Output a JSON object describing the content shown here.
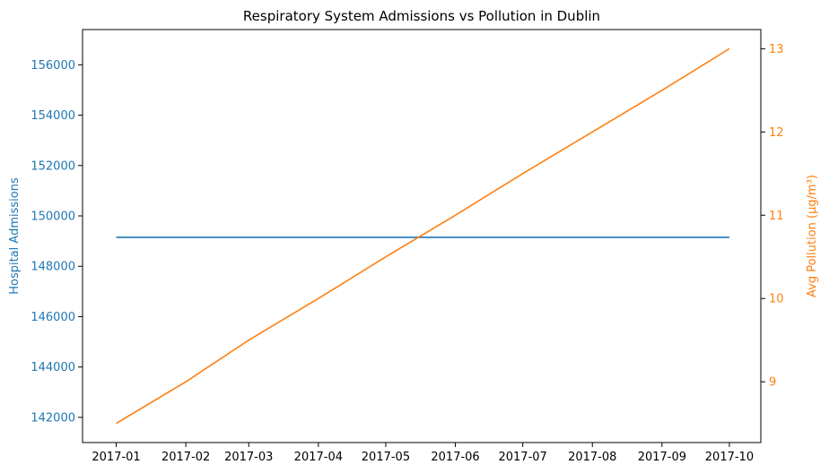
{
  "chart_data": {
    "type": "line",
    "title": "Respiratory System Admissions vs Pollution in Dublin",
    "x": [
      "2017-01",
      "2017-02",
      "2017-03",
      "2017-04",
      "2017-05",
      "2017-06",
      "2017-07",
      "2017-08",
      "2017-09",
      "2017-10"
    ],
    "xlabel": "",
    "x_ticks": [
      "2017-01",
      "2017-02",
      "2017-03",
      "2017-04",
      "2017-05",
      "2017-06",
      "2017-07",
      "2017-08",
      "2017-09",
      "2017-10"
    ],
    "series": [
      {
        "axis": "left",
        "color": "#1f77b4",
        "x": [
          "2017-01-01",
          "2017-10-01"
        ],
        "values": [
          149150,
          149150
        ]
      },
      {
        "axis": "right",
        "color": "#ff7f0e",
        "x": [
          "2017-01-01",
          "2017-02-01",
          "2017-03-01",
          "2017-04-01",
          "2017-05-01",
          "2017-06-01",
          "2017-07-01",
          "2017-08-01",
          "2017-09-01",
          "2017-10-01"
        ],
        "values": [
          8.5,
          9.0,
          9.5,
          10.0,
          10.5,
          11.0,
          11.5,
          12.0,
          12.5,
          13.0
        ]
      }
    ],
    "y_left": {
      "label": "Hospital Admissions",
      "ticks": [
        142000,
        144000,
        146000,
        148000,
        150000,
        152000,
        154000,
        156000
      ],
      "ylim": [
        141000,
        157400
      ],
      "color": "#1f77b4"
    },
    "y_right": {
      "label": "Avg Pollution (µg/m³)",
      "ticks": [
        9,
        10,
        11,
        12,
        13
      ],
      "ylim": [
        8.27,
        13.23
      ],
      "color": "#ff7f0e"
    },
    "xlim": [
      "2016-12-17",
      "2017-10-15"
    ],
    "grid": false,
    "legend": "none"
  }
}
